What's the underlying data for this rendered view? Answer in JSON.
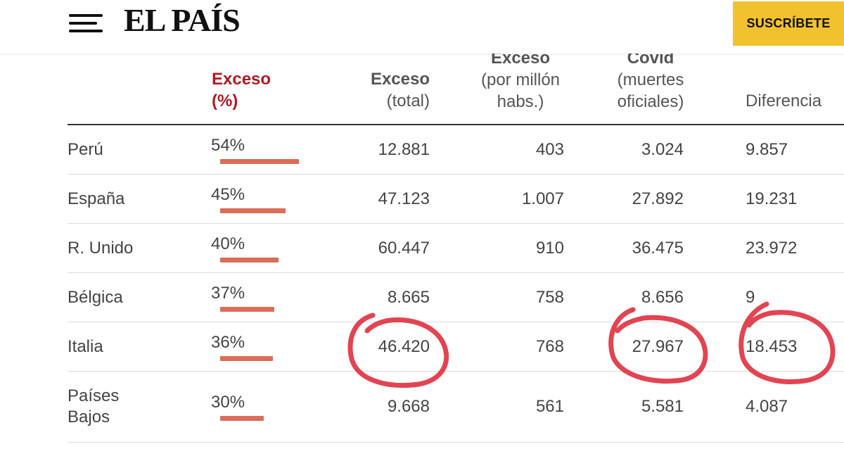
{
  "header": {
    "logo": "EL PAÍS",
    "subscribe_label": "SUSCRÍBETE"
  },
  "table": {
    "columns": {
      "exceso_pct": [
        "Exceso",
        "(%)"
      ],
      "exceso_total": [
        "Exceso",
        "(total)"
      ],
      "exceso_millon": [
        "Exceso",
        "(por millón",
        "habs.)"
      ],
      "covid": [
        "Covid",
        "(muertes",
        "oficiales)"
      ],
      "diferencia": [
        "Diferencia"
      ]
    },
    "rows": [
      {
        "country": [
          "Perú"
        ],
        "pct": "54%",
        "pct_value": 54,
        "total": "12.881",
        "millon": "403",
        "covid": "3.024",
        "diff": "9.857"
      },
      {
        "country": [
          "España"
        ],
        "pct": "45%",
        "pct_value": 45,
        "total": "47.123",
        "millon": "1.007",
        "covid": "27.892",
        "diff": "19.231"
      },
      {
        "country": [
          "R. Unido"
        ],
        "pct": "40%",
        "pct_value": 40,
        "total": "60.447",
        "millon": "910",
        "covid": "36.475",
        "diff": "23.972"
      },
      {
        "country": [
          "Bélgica"
        ],
        "pct": "37%",
        "pct_value": 37,
        "total": "8.665",
        "millon": "758",
        "covid": "8.656",
        "diff": "9"
      },
      {
        "country": [
          "Italia"
        ],
        "pct": "36%",
        "pct_value": 36,
        "total": "46.420",
        "millon": "768",
        "covid": "27.967",
        "diff": "18.453"
      },
      {
        "country": [
          "Países",
          "Bajos"
        ],
        "pct": "30%",
        "pct_value": 30,
        "total": "9.668",
        "millon": "561",
        "covid": "5.581",
        "diff": "4.087"
      }
    ]
  },
  "colors": {
    "accent_red": "#b11a24",
    "bar": "#dc6d58",
    "circle_annotation": "#e0303f",
    "subscribe_bg": "#f2c22e"
  }
}
